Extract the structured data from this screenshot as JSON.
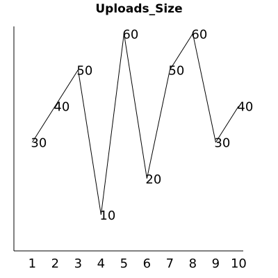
{
  "chart_data": {
    "type": "line",
    "title": "Uploads_Size",
    "xlabel": "",
    "ylabel": "",
    "x": [
      1,
      2,
      3,
      4,
      5,
      6,
      7,
      8,
      9,
      10
    ],
    "x_tick_labels": [
      "1",
      "2",
      "3",
      "4",
      "5",
      "6",
      "7",
      "8",
      "9",
      "10"
    ],
    "series": [
      {
        "values": [
          30,
          40,
          50,
          10,
          60,
          20,
          50,
          60,
          30,
          40
        ]
      }
    ],
    "xlim": [
      0.2,
      10.2
    ],
    "ylim": [
      0,
      62
    ],
    "grid": false,
    "legend": "none",
    "colors": {
      "line": "#000000",
      "axis": "#000000",
      "background": "#ffffff"
    }
  }
}
